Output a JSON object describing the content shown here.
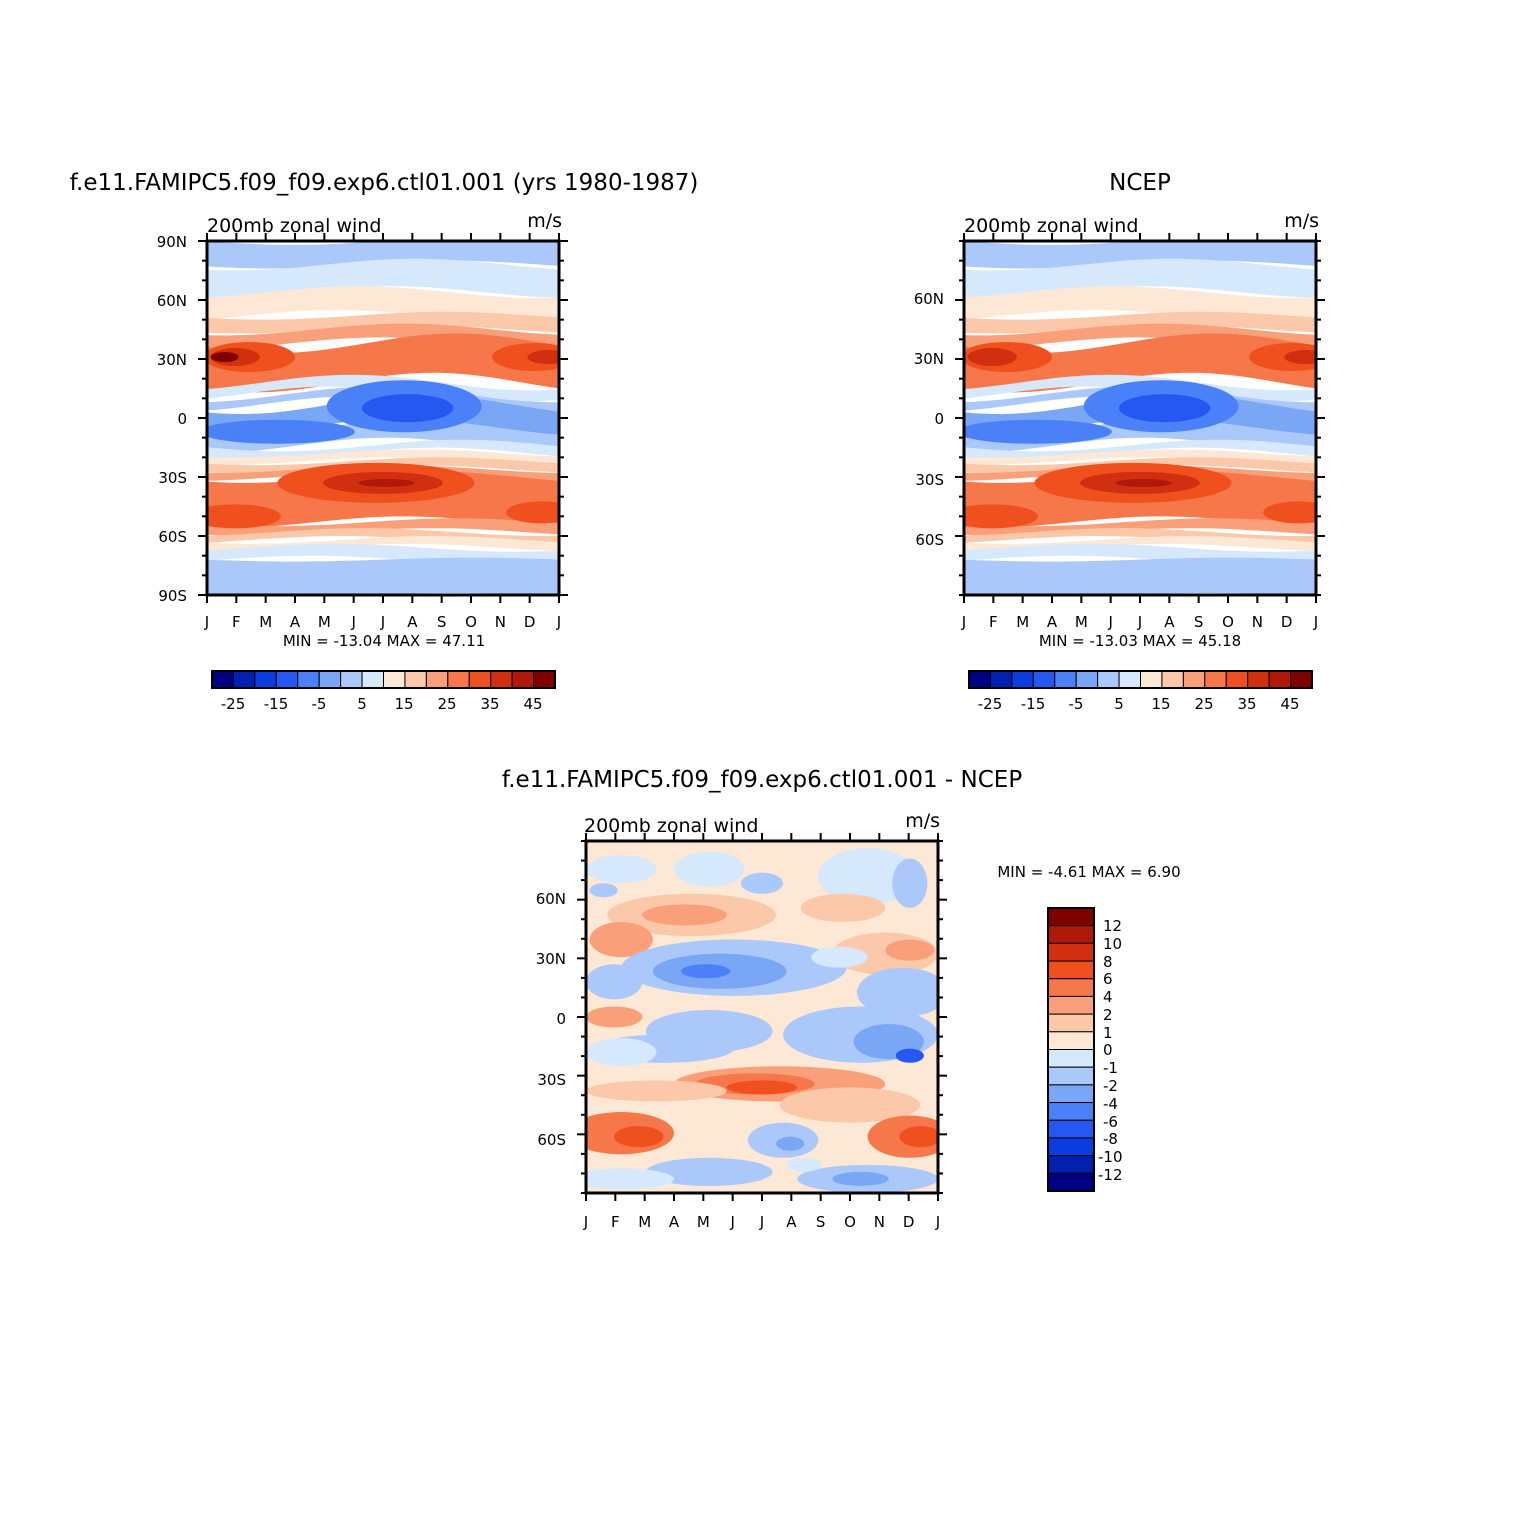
{
  "chart_data": [
    {
      "id": "model",
      "type": "heatmap",
      "title": "f.e11.FAMIPC5.f09_f09.exp6.ctl01.001 (yrs 1980-1987)",
      "subtitle": "200mb zonal wind",
      "units": "m/s",
      "x_ticks": [
        "J",
        "F",
        "M",
        "A",
        "M",
        "J",
        "J",
        "A",
        "S",
        "O",
        "N",
        "D",
        "J"
      ],
      "y_ticks": [
        "90N",
        "60N",
        "30N",
        "0",
        "30S",
        "60S",
        "90S"
      ],
      "y_range": [
        -90,
        90
      ],
      "min": "-13.04",
      "max": "47.11",
      "stats_text": "MIN = -13.04 MAX = 47.11",
      "colorbar_labels": [
        "-25",
        "-15",
        "-5",
        "5",
        "15",
        "25",
        "35",
        "45"
      ],
      "latitude_profile_ms": [
        [
          90,
          -3
        ],
        [
          75,
          4
        ],
        [
          60,
          12
        ],
        [
          45,
          22
        ],
        [
          30,
          40
        ],
        [
          15,
          18
        ],
        [
          0,
          -8
        ],
        [
          -15,
          -2
        ],
        [
          -30,
          30
        ],
        [
          -45,
          32
        ],
        [
          -60,
          22
        ],
        [
          -75,
          5
        ],
        [
          -90,
          -5
        ]
      ]
    },
    {
      "id": "obs",
      "type": "heatmap",
      "title": "NCEP",
      "subtitle": "200mb zonal wind",
      "units": "m/s",
      "x_ticks": [
        "J",
        "F",
        "M",
        "A",
        "M",
        "J",
        "J",
        "A",
        "S",
        "O",
        "N",
        "D",
        "J"
      ],
      "y_ticks": [
        "60N",
        "30N",
        "0",
        "30S",
        "60S"
      ],
      "y_range": [
        -90,
        90
      ],
      "min": "-13.03",
      "max": "45.18",
      "stats_text": "MIN = -13.03 MAX = 45.18",
      "colorbar_labels": [
        "-25",
        "-15",
        "-5",
        "5",
        "15",
        "25",
        "35",
        "45"
      ],
      "latitude_profile_ms": [
        [
          90,
          -3
        ],
        [
          75,
          4
        ],
        [
          60,
          12
        ],
        [
          45,
          22
        ],
        [
          30,
          38
        ],
        [
          15,
          18
        ],
        [
          0,
          -9
        ],
        [
          -15,
          -2
        ],
        [
          -30,
          31
        ],
        [
          -45,
          30
        ],
        [
          -60,
          22
        ],
        [
          -75,
          5
        ],
        [
          -90,
          -5
        ]
      ]
    },
    {
      "id": "diff",
      "type": "heatmap",
      "title": "f.e11.FAMIPC5.f09_f09.exp6.ctl01.001 - NCEP",
      "subtitle": "200mb zonal wind",
      "units": "m/s",
      "x_ticks": [
        "J",
        "F",
        "M",
        "A",
        "M",
        "J",
        "J",
        "A",
        "S",
        "O",
        "N",
        "D",
        "J"
      ],
      "y_ticks": [
        "60N",
        "30N",
        "0",
        "30S",
        "60S"
      ],
      "y_range": [
        -90,
        90
      ],
      "min": "-4.61",
      "max": "6.90",
      "stats_text": "MIN = -4.61 MAX = 6.90",
      "colorbar_labels": [
        "12",
        "10",
        "8",
        "6",
        "4",
        "2",
        "1",
        "0",
        "-1",
        "-2",
        "-4",
        "-6",
        "-8",
        "-10",
        "-12"
      ]
    }
  ],
  "colors": {
    "palette": [
      "#000080",
      "#0020b0",
      "#0a3ce0",
      "#2458f0",
      "#4a80f8",
      "#7aa6f6",
      "#abc8fa",
      "#d6e8fc",
      "#fde8d6",
      "#fcc8aa",
      "#f9a07a",
      "#f6784a",
      "#f0501e",
      "#d03010",
      "#b01808",
      "#800000"
    ],
    "frame": "#000000"
  }
}
